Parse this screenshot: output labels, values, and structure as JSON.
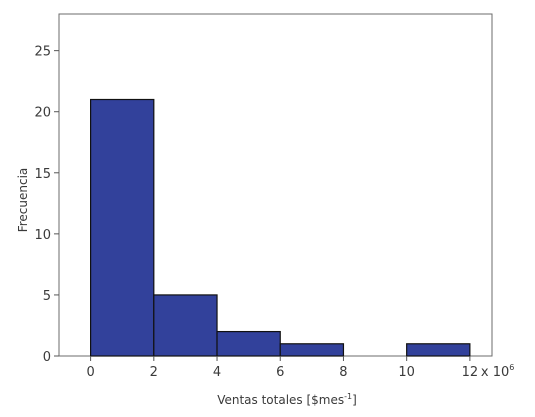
{
  "chart_data": {
    "type": "bar",
    "subtype": "histogram",
    "bins": [
      {
        "x0": 0,
        "x1": 2,
        "count": 21
      },
      {
        "x0": 2,
        "x1": 4,
        "count": 5
      },
      {
        "x0": 4,
        "x1": 6,
        "count": 2
      },
      {
        "x0": 6,
        "x1": 8,
        "count": 1
      },
      {
        "x0": 8,
        "x1": 10,
        "count": 0
      },
      {
        "x0": 10,
        "x1": 12,
        "count": 1
      }
    ],
    "xlim": [
      -1,
      12.7
    ],
    "ylim": [
      0,
      28
    ],
    "xticks": [
      "0",
      "2",
      "4",
      "6",
      "8",
      "10",
      "12"
    ],
    "yticks": [
      "0",
      "5",
      "10",
      "15",
      "20",
      "25"
    ],
    "x_multiplier_label": "x 10",
    "x_multiplier_exp": "6",
    "xlabel": "Ventas totales [$mes",
    "xlabel_exp": "-1",
    "xlabel_end": "]",
    "ylabel": "Frecuencia",
    "bar_color": "#32419b",
    "grid": false
  }
}
